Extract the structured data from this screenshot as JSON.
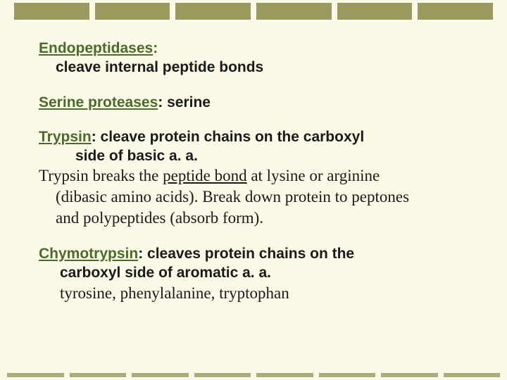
{
  "top_border": {
    "blocks": 6,
    "color": "#9b9b60",
    "height": 24
  },
  "bottom_border": {
    "blocks": 8,
    "color": "#aaaa7a",
    "height": 6
  },
  "background_color": "#fbfae6",
  "heading_color": "#4a6b2a",
  "text_color": "#1a1a1a",
  "sans_font_size": 21,
  "serif_font_size": 23,
  "sections": {
    "endo": {
      "title": "Endopeptidases",
      "colon": ":",
      "desc": "cleave internal peptide bonds"
    },
    "serine": {
      "title": "Serine proteases",
      "after": ": serine"
    },
    "trypsin": {
      "title": "Trypsin",
      "after": ": cleave protein chains on the carboxyl",
      "line2": "side of basic a. a.",
      "serif_pre": "Trypsin breaks the ",
      "serif_under": "peptide bond",
      "serif_post": " at lysine or arginine",
      "serif_l2": "(dibasic amino acids). Break down protein to peptones",
      "serif_l3": "and polypeptides (absorb form)."
    },
    "chymo": {
      "title": "Chymotrypsin",
      "after": ": cleaves protein chains on the",
      "line2": "carboxyl side of aromatic a. a.",
      "serif": "tyrosine, phenylalanine, tryptophan"
    }
  }
}
